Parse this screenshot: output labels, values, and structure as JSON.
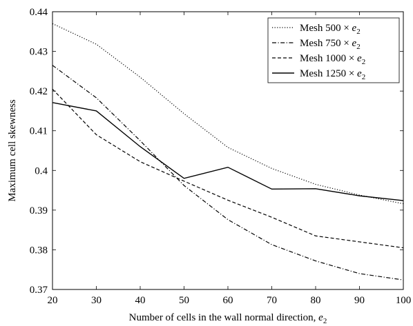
{
  "chart_data": {
    "type": "line",
    "title": "",
    "xlabel": "Number of cells in the wall normal direction, ",
    "xlabel_symbol": "e",
    "xlabel_subscript": "2",
    "ylabel": "Maximum cell skewness",
    "xlim": [
      20,
      100
    ],
    "ylim": [
      0.37,
      0.44
    ],
    "xticks": [
      20,
      30,
      40,
      50,
      60,
      70,
      80,
      90,
      100
    ],
    "xtick_labels": [
      "20",
      "30",
      "40",
      "50",
      "60",
      "70",
      "80",
      "90",
      "100"
    ],
    "yticks": [
      0.37,
      0.38,
      0.39,
      0.4,
      0.41,
      0.42,
      0.43,
      0.44
    ],
    "ytick_labels": [
      "0.37",
      "0.38",
      "0.39",
      "0.4",
      "0.41",
      "0.42",
      "0.43",
      "0.44"
    ],
    "grid": false,
    "legend_position": "top-right",
    "x": [
      20,
      30,
      40,
      50,
      60,
      70,
      80,
      90,
      100
    ],
    "series": [
      {
        "name": "Mesh 500 × e",
        "name_subscript": "2",
        "style": "dotted",
        "color": "#000000",
        "values": [
          0.437,
          0.4318,
          0.4235,
          0.4143,
          0.4058,
          0.4005,
          0.3965,
          0.3938,
          0.3916
        ]
      },
      {
        "name": "Mesh 750 × e",
        "name_subscript": "2",
        "style": "dashdot",
        "color": "#000000",
        "values": [
          0.4265,
          0.4183,
          0.4075,
          0.3962,
          0.3876,
          0.3813,
          0.3772,
          0.374,
          0.3724
        ]
      },
      {
        "name": "Mesh 1000 × e",
        "name_subscript": "2",
        "style": "dashed",
        "color": "#000000",
        "values": [
          0.4205,
          0.409,
          0.4022,
          0.3973,
          0.3925,
          0.3882,
          0.3835,
          0.382,
          0.3805
        ]
      },
      {
        "name": "Mesh 1250 × e",
        "name_subscript": "2",
        "style": "solid",
        "color": "#000000",
        "values": [
          0.4171,
          0.415,
          0.406,
          0.398,
          0.4008,
          0.3953,
          0.3954,
          0.3936,
          0.3924
        ]
      }
    ]
  }
}
